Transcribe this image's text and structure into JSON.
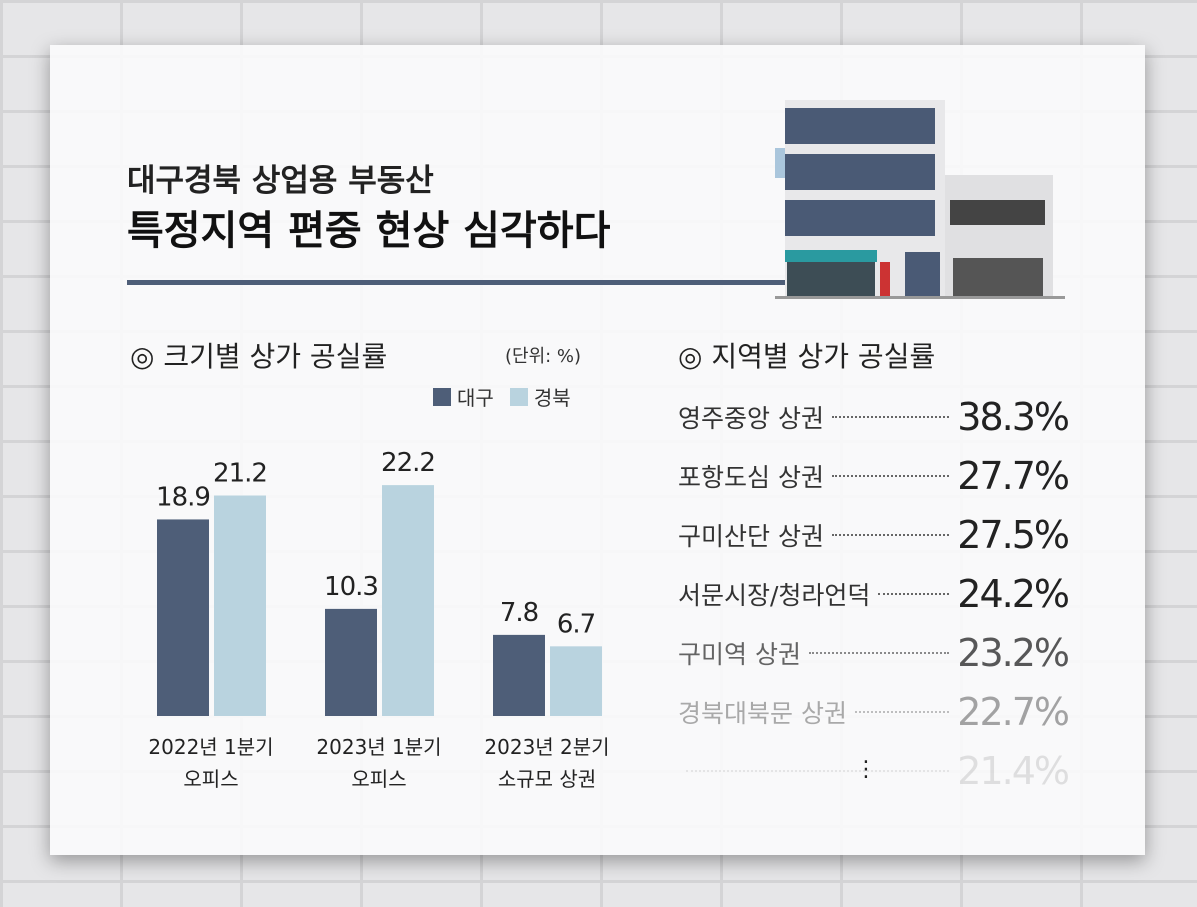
{
  "title": {
    "line1": "대구경북 상업용 부동산",
    "line2": "특정지역 편중 현상 심각하다"
  },
  "left": {
    "heading": "◎ 크기별 상가 공실률",
    "unit": "(단위: %)"
  },
  "right": {
    "heading": "◎ 지역별 상가 공실률",
    "items": [
      {
        "label": "영주중앙 상권",
        "value": "38.3%"
      },
      {
        "label": "포항도심 상권",
        "value": "27.7%"
      },
      {
        "label": "구미산단 상권",
        "value": "27.5%"
      },
      {
        "label": "서문시장/청라언덕",
        "value": "24.2%"
      },
      {
        "label": "구미역 상권",
        "value": "23.2%"
      },
      {
        "label": "경북대북문 상권",
        "value": "22.7%"
      },
      {
        "label": "",
        "value": "21.4%"
      }
    ],
    "more": "⋮"
  },
  "chart_data": {
    "type": "bar",
    "categories": [
      [
        "2022년 1분기",
        "오피스"
      ],
      [
        "2023년 1분기",
        "오피스"
      ],
      [
        "2023년 2분기",
        "소규모 상권"
      ]
    ],
    "series": [
      {
        "name": "대구",
        "color": "#4e5e78",
        "values": [
          18.9,
          10.3,
          7.8
        ]
      },
      {
        "name": "경북",
        "color": "#b9d3df",
        "values": [
          21.2,
          22.2,
          6.7
        ]
      }
    ],
    "unit": "%",
    "legend": "top-right",
    "grid": false
  }
}
